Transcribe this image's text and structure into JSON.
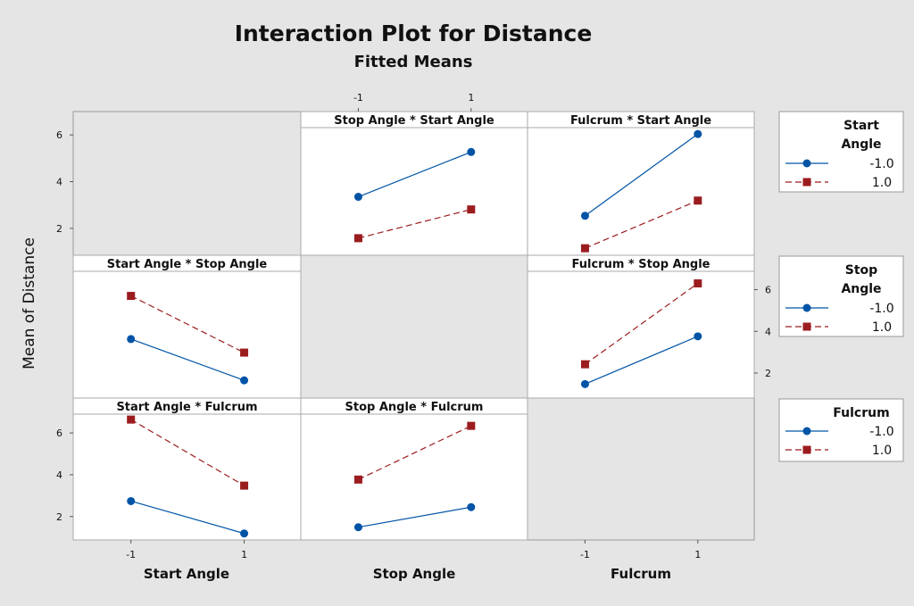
{
  "chart_data": {
    "type": "line",
    "title": "Interaction Plot for Distance",
    "subtitle": "Fitted Means",
    "ylabel": "Mean of Distance",
    "factors": [
      "Start Angle",
      "Stop Angle",
      "Fulcrum"
    ],
    "x_levels": [
      -1,
      1
    ],
    "x_tick_labels": [
      "-1",
      "1"
    ],
    "row_ylims": [
      [
        0.85,
        7.0
      ],
      [
        0.8,
        7.65
      ],
      [
        0.88,
        7.67
      ]
    ],
    "y_ticks": [
      2,
      4,
      6
    ],
    "grid": false,
    "legend_placement": "right",
    "colors": {
      "level_neg": "#0054a6",
      "level_pos": "#9b1c1f",
      "empty_cell": "#e5e5e5"
    },
    "legends": [
      {
        "title": "Start Angle",
        "title_lines": [
          "Start",
          "Angle"
        ],
        "entries": [
          "-1.0",
          "1.0"
        ]
      },
      {
        "title": "Stop Angle",
        "title_lines": [
          "Stop",
          "Angle"
        ],
        "entries": [
          "-1.0",
          "1.0"
        ]
      },
      {
        "title": "Fulcrum",
        "title_lines": [
          "Fulcrum"
        ],
        "entries": [
          "-1.0",
          "1.0"
        ]
      }
    ],
    "panels": [
      {
        "row": 0,
        "col": 1,
        "title": "Stop Angle * Start Angle",
        "series": [
          {
            "level": "-1.0",
            "values": [
              3.35,
              5.27
            ]
          },
          {
            "level": "1.0",
            "values": [
              1.58,
              2.81
            ]
          }
        ]
      },
      {
        "row": 0,
        "col": 2,
        "title": "Fulcrum * Start Angle",
        "series": [
          {
            "level": "-1.0",
            "values": [
              2.54,
              6.04
            ]
          },
          {
            "level": "1.0",
            "values": [
              1.15,
              3.19
            ]
          }
        ]
      },
      {
        "row": 1,
        "col": 0,
        "title": "Start Angle * Stop Angle",
        "series": [
          {
            "level": "-1.0",
            "values": [
              3.63,
              1.65
            ]
          },
          {
            "level": "1.0",
            "values": [
              5.7,
              2.98
            ]
          }
        ]
      },
      {
        "row": 1,
        "col": 2,
        "title": "Fulcrum * Stop Angle",
        "series": [
          {
            "level": "-1.0",
            "values": [
              1.47,
              3.76
            ]
          },
          {
            "level": "1.0",
            "values": [
              2.42,
              6.3
            ]
          }
        ]
      },
      {
        "row": 2,
        "col": 0,
        "title": "Start Angle * Fulcrum",
        "series": [
          {
            "level": "-1.0",
            "values": [
              2.74,
              1.19
            ]
          },
          {
            "level": "1.0",
            "values": [
              6.64,
              3.48
            ]
          }
        ]
      },
      {
        "row": 2,
        "col": 1,
        "title": "Stop Angle * Fulcrum",
        "series": [
          {
            "level": "-1.0",
            "values": [
              1.49,
              2.45
            ]
          },
          {
            "level": "1.0",
            "values": [
              3.77,
              6.34
            ]
          }
        ]
      }
    ]
  }
}
